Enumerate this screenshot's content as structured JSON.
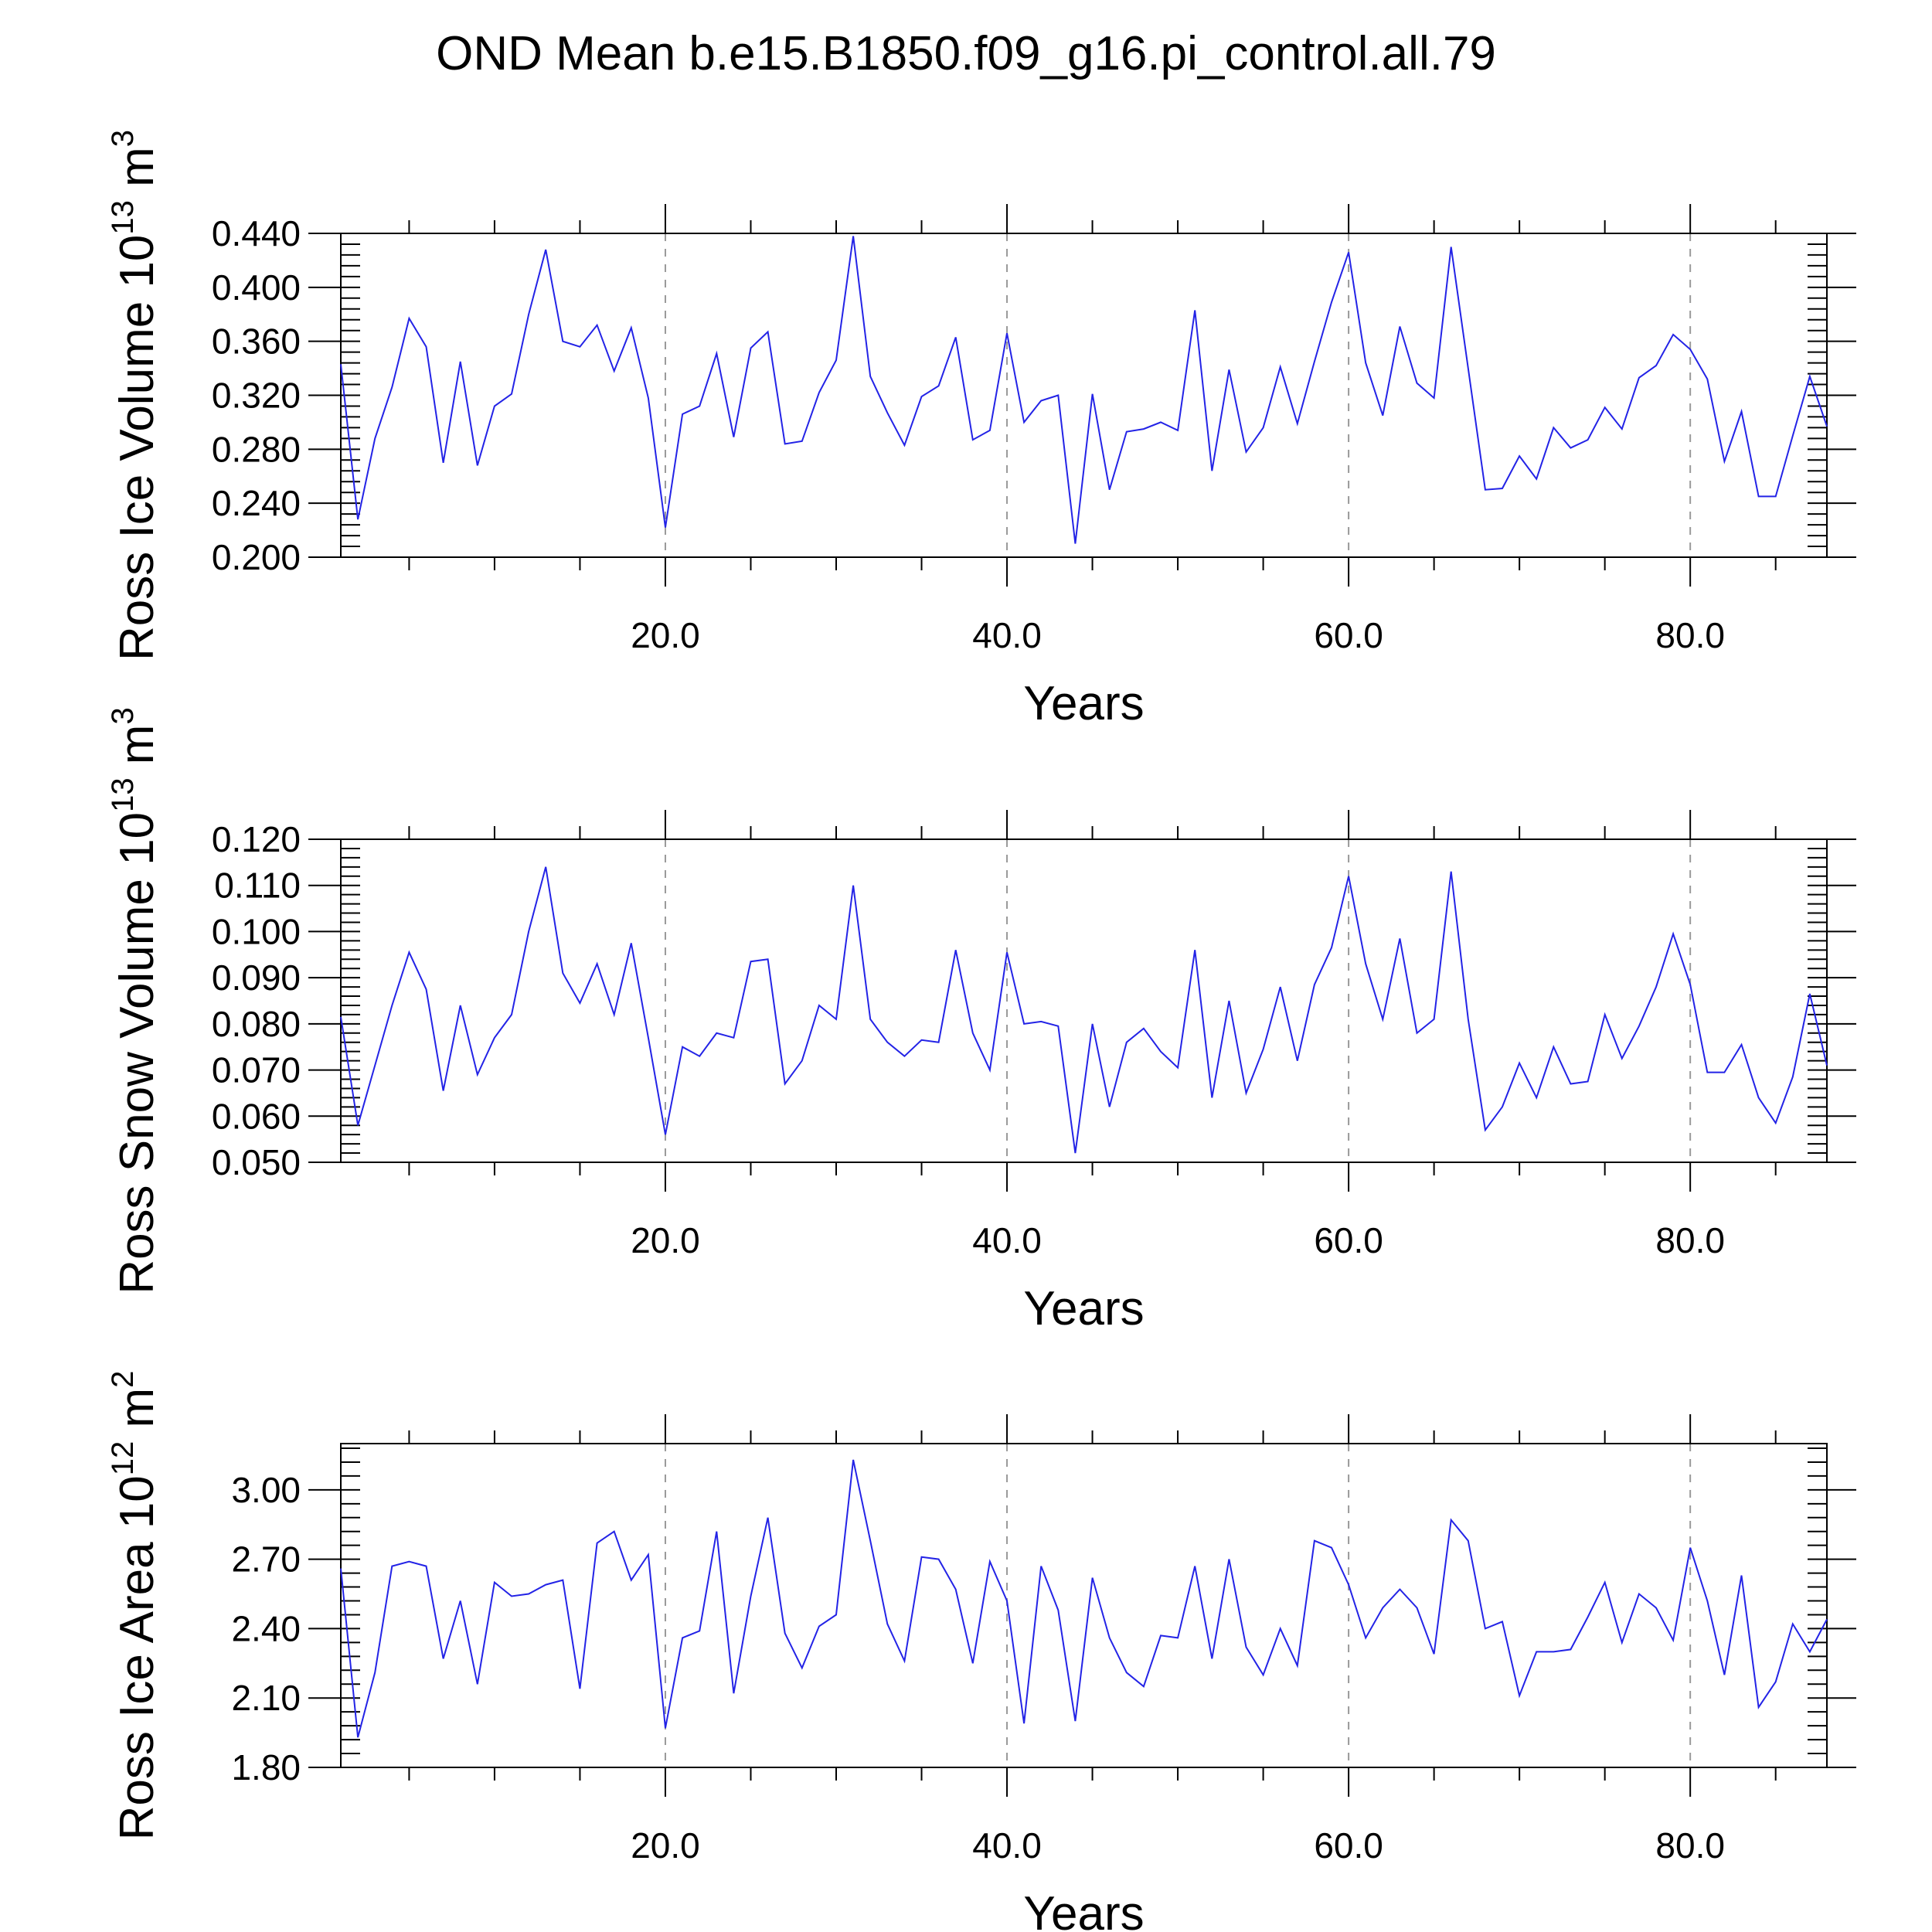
{
  "figure": {
    "title": "OND Mean b.e15.B1850.f09_g16.pi_control.all.79"
  },
  "chart_data": [
    {
      "type": "line",
      "xlabel": "Years",
      "ylabel_main": "Ross Ice Volume 10",
      "ylabel_exp": "13",
      "ylabel_unit": " m",
      "ylabel_unit_exp": "3",
      "xlim": [
        1,
        88
      ],
      "ylim": [
        0.2,
        0.44
      ],
      "xticks": [
        "20.0",
        "40.0",
        "60.0",
        "80.0"
      ],
      "xtick_values": [
        20,
        40,
        60,
        80
      ],
      "yticks": [
        "0.200",
        "0.240",
        "0.280",
        "0.320",
        "0.360",
        "0.400",
        "0.440"
      ],
      "ytick_values": [
        0.2,
        0.24,
        0.28,
        0.32,
        0.36,
        0.4,
        0.44
      ],
      "y_minor_step": 0.008,
      "grid": "vertical-dashed",
      "color": "#2323e6",
      "values": [
        0.343,
        0.228,
        0.288,
        0.326,
        0.377,
        0.356,
        0.27,
        0.345,
        0.268,
        0.312,
        0.321,
        0.38,
        0.428,
        0.36,
        0.356,
        0.372,
        0.338,
        0.37,
        0.318,
        0.222,
        0.306,
        0.312,
        0.351,
        0.289,
        0.355,
        0.367,
        0.284,
        0.286,
        0.322,
        0.346,
        0.438,
        0.334,
        0.307,
        0.283,
        0.319,
        0.327,
        0.363,
        0.287,
        0.294,
        0.366,
        0.3,
        0.316,
        0.32,
        0.21,
        0.321,
        0.25,
        0.293,
        0.295,
        0.3,
        0.294,
        0.383,
        0.264,
        0.339,
        0.278,
        0.296,
        0.341,
        0.299,
        0.345,
        0.389,
        0.426,
        0.344,
        0.305,
        0.371,
        0.329,
        0.318,
        0.43,
        0.34,
        0.25,
        0.251,
        0.275,
        0.258,
        0.296,
        0.281,
        0.287,
        0.311,
        0.295,
        0.333,
        0.342,
        0.365,
        0.354,
        0.332,
        0.271,
        0.308,
        0.245,
        0.245,
        0.29,
        0.334,
        0.297
      ]
    },
    {
      "type": "line",
      "xlabel": "Years",
      "ylabel_main": "Ross Snow Volume 10",
      "ylabel_exp": "13",
      "ylabel_unit": " m",
      "ylabel_unit_exp": "3",
      "xlim": [
        1,
        88
      ],
      "ylim": [
        0.05,
        0.12
      ],
      "xticks": [
        "20.0",
        "40.0",
        "60.0",
        "80.0"
      ],
      "xtick_values": [
        20,
        40,
        60,
        80
      ],
      "yticks": [
        "0.050",
        "0.060",
        "0.070",
        "0.080",
        "0.090",
        "0.100",
        "0.110",
        "0.120"
      ],
      "ytick_values": [
        0.05,
        0.06,
        0.07,
        0.08,
        0.09,
        0.1,
        0.11,
        0.12
      ],
      "y_minor_step": 0.002,
      "grid": "vertical-dashed",
      "color": "#2323e6",
      "values": [
        0.0815,
        0.058,
        0.071,
        0.084,
        0.0955,
        0.0875,
        0.0655,
        0.084,
        0.069,
        0.077,
        0.082,
        0.1,
        0.114,
        0.091,
        0.0845,
        0.093,
        0.082,
        0.0975,
        0.077,
        0.056,
        0.075,
        0.073,
        0.078,
        0.077,
        0.0935,
        0.094,
        0.067,
        0.072,
        0.084,
        0.081,
        0.11,
        0.081,
        0.076,
        0.073,
        0.0765,
        0.076,
        0.096,
        0.078,
        0.07,
        0.0955,
        0.08,
        0.0805,
        0.0795,
        0.052,
        0.08,
        0.062,
        0.076,
        0.079,
        0.074,
        0.0705,
        0.096,
        0.064,
        0.085,
        0.065,
        0.0745,
        0.088,
        0.072,
        0.0885,
        0.0965,
        0.112,
        0.093,
        0.081,
        0.0985,
        0.078,
        0.081,
        0.113,
        0.081,
        0.057,
        0.062,
        0.0715,
        0.064,
        0.075,
        0.067,
        0.0675,
        0.082,
        0.0725,
        0.0795,
        0.088,
        0.0995,
        0.0885,
        0.0695,
        0.0695,
        0.0755,
        0.064,
        0.0585,
        0.0685,
        0.0865,
        0.071
      ]
    },
    {
      "type": "line",
      "xlabel": "Years",
      "ylabel_main": "Ross Ice Area 10",
      "ylabel_exp": "12",
      "ylabel_unit": " m",
      "ylabel_unit_exp": "2",
      "xlim": [
        1,
        88
      ],
      "ylim": [
        1.8,
        3.2
      ],
      "xticks": [
        "20.0",
        "40.0",
        "60.0",
        "80.0"
      ],
      "xtick_values": [
        20,
        40,
        60,
        80
      ],
      "yticks": [
        "1.80",
        "2.10",
        "2.40",
        "2.70",
        "3.00"
      ],
      "ytick_values": [
        1.8,
        2.1,
        2.4,
        2.7,
        3.0
      ],
      "y_minor_step": 0.06,
      "grid": "vertical-dashed",
      "color": "#2323e6",
      "values": [
        2.66,
        1.93,
        2.21,
        2.67,
        2.69,
        2.67,
        2.27,
        2.52,
        2.16,
        2.6,
        2.54,
        2.55,
        2.59,
        2.61,
        2.14,
        2.77,
        2.82,
        2.61,
        2.72,
        1.97,
        2.36,
        2.39,
        2.82,
        2.12,
        2.54,
        2.88,
        2.38,
        2.23,
        2.41,
        2.46,
        3.13,
        2.78,
        2.42,
        2.26,
        2.71,
        2.7,
        2.57,
        2.25,
        2.69,
        2.52,
        1.99,
        2.67,
        2.48,
        2.0,
        2.62,
        2.36,
        2.21,
        2.15,
        2.37,
        2.36,
        2.67,
        2.27,
        2.7,
        2.32,
        2.2,
        2.4,
        2.24,
        2.78,
        2.75,
        2.59,
        2.36,
        2.49,
        2.57,
        2.49,
        2.29,
        2.87,
        2.78,
        2.4,
        2.43,
        2.11,
        2.3,
        2.3,
        2.31,
        2.45,
        2.6,
        2.34,
        2.55,
        2.49,
        2.35,
        2.75,
        2.52,
        2.2,
        2.63,
        2.06,
        2.17,
        2.42,
        2.3,
        2.44
      ]
    }
  ]
}
